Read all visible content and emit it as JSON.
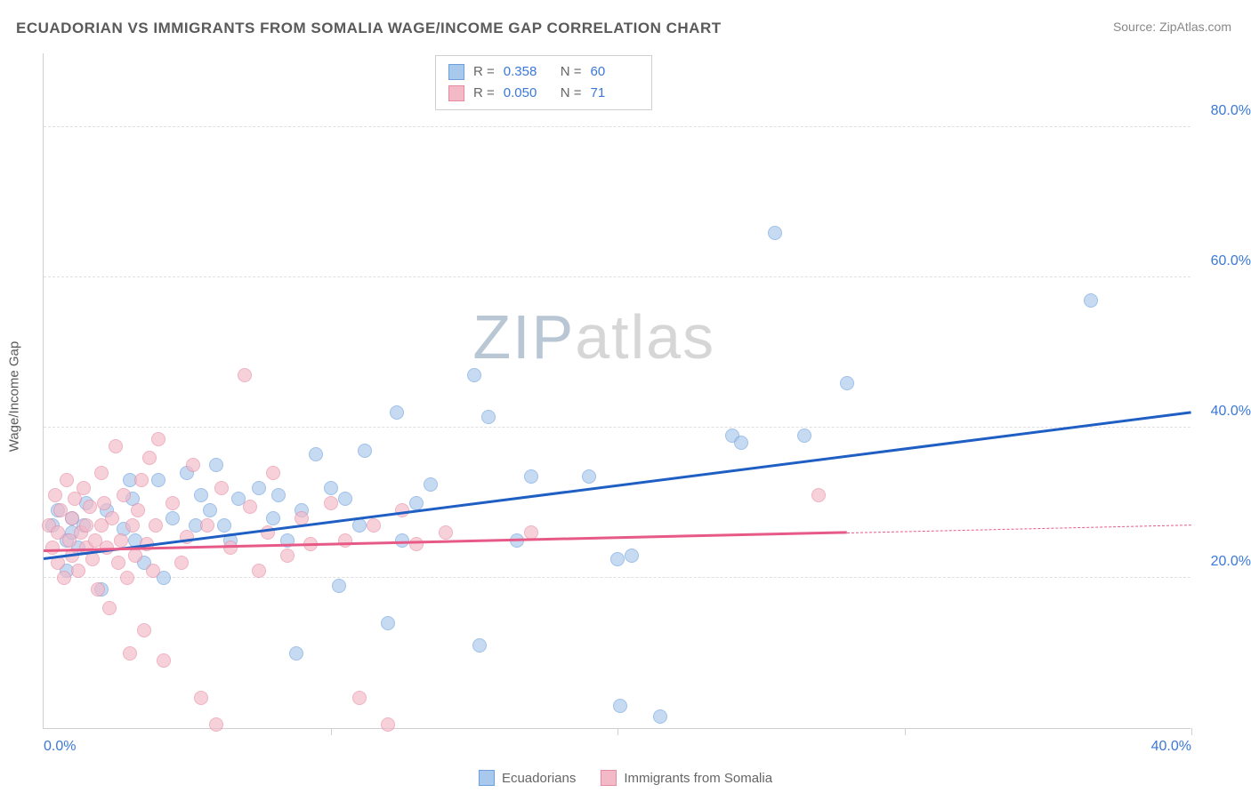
{
  "title": "ECUADORIAN VS IMMIGRANTS FROM SOMALIA WAGE/INCOME GAP CORRELATION CHART",
  "source": "Source: ZipAtlas.com",
  "y_axis_label": "Wage/Income Gap",
  "watermark": {
    "zip": "ZIP",
    "atlas": "atlas",
    "zip_color": "#b9c6d4",
    "atlas_color": "#d6d6d6"
  },
  "chart": {
    "type": "scatter",
    "background_color": "#ffffff",
    "grid_color": "#e0e0e0",
    "axis_color": "#cfcfcf",
    "tick_label_color": "#3b78d8",
    "xlim": [
      0,
      40
    ],
    "ylim": [
      0,
      90
    ],
    "x_ticks": [
      0,
      10,
      20,
      30,
      40
    ],
    "x_tick_labels": [
      "0.0%",
      "",
      "",
      "",
      "40.0%"
    ],
    "y_ticks": [
      20,
      40,
      60,
      80
    ],
    "y_tick_labels": [
      "20.0%",
      "40.0%",
      "60.0%",
      "80.0%"
    ],
    "marker_radius": 8,
    "marker_opacity": 0.65,
    "series": [
      {
        "key": "ecuadorians",
        "label": "Ecuadorians",
        "fill": "#a8c8ec",
        "stroke": "#6d9fde",
        "trend_color": "#1f5fc4",
        "R": "0.358",
        "N": "60",
        "trend": {
          "x1": 0,
          "y1": 22.5,
          "x2": 40,
          "y2": 42,
          "dash_from_x": null
        },
        "points": [
          [
            0.3,
            27
          ],
          [
            0.5,
            29
          ],
          [
            0.8,
            25
          ],
          [
            0.8,
            21
          ],
          [
            1.0,
            28
          ],
          [
            1.0,
            26
          ],
          [
            1.2,
            24
          ],
          [
            1.4,
            27
          ],
          [
            1.5,
            30
          ],
          [
            2.0,
            18.5
          ],
          [
            2.2,
            29
          ],
          [
            2.8,
            26.5
          ],
          [
            3.0,
            33
          ],
          [
            3.1,
            30.5
          ],
          [
            3.2,
            25
          ],
          [
            3.5,
            22
          ],
          [
            4.0,
            33
          ],
          [
            4.2,
            20
          ],
          [
            4.5,
            28
          ],
          [
            5.0,
            34
          ],
          [
            5.3,
            27
          ],
          [
            5.5,
            31
          ],
          [
            5.8,
            29
          ],
          [
            6.0,
            35
          ],
          [
            6.3,
            27
          ],
          [
            6.5,
            25
          ],
          [
            6.8,
            30.5
          ],
          [
            7.5,
            32
          ],
          [
            8.0,
            28
          ],
          [
            8.2,
            31
          ],
          [
            8.5,
            25
          ],
          [
            8.8,
            10
          ],
          [
            9.0,
            29
          ],
          [
            9.5,
            36.5
          ],
          [
            10.0,
            32
          ],
          [
            10.3,
            19
          ],
          [
            10.5,
            30.5
          ],
          [
            11.0,
            27
          ],
          [
            11.2,
            37
          ],
          [
            12.0,
            14
          ],
          [
            12.3,
            42
          ],
          [
            12.5,
            25
          ],
          [
            13.0,
            30
          ],
          [
            13.5,
            32.5
          ],
          [
            15.0,
            47
          ],
          [
            15.2,
            11
          ],
          [
            15.5,
            41.5
          ],
          [
            16.5,
            25
          ],
          [
            17.0,
            33.5
          ],
          [
            19.0,
            33.5
          ],
          [
            20.0,
            22.5
          ],
          [
            20.1,
            3
          ],
          [
            20.5,
            23
          ],
          [
            21.5,
            1.5
          ],
          [
            24.0,
            39
          ],
          [
            24.3,
            38
          ],
          [
            25.5,
            66
          ],
          [
            26.5,
            39
          ],
          [
            28.0,
            46
          ],
          [
            36.5,
            57
          ]
        ]
      },
      {
        "key": "somalia",
        "label": "Immigrants from Somalia",
        "fill": "#f4b9c7",
        "stroke": "#e68aa3",
        "trend_color": "#e75a87",
        "R": "0.050",
        "N": "71",
        "trend": {
          "x1": 0,
          "y1": 23.5,
          "x2": 40,
          "y2": 27,
          "dash_from_x": 28
        },
        "points": [
          [
            0.2,
            27
          ],
          [
            0.3,
            24
          ],
          [
            0.4,
            31
          ],
          [
            0.5,
            22
          ],
          [
            0.5,
            26
          ],
          [
            0.6,
            29
          ],
          [
            0.7,
            20
          ],
          [
            0.8,
            33
          ],
          [
            0.9,
            25
          ],
          [
            1.0,
            28
          ],
          [
            1.0,
            23
          ],
          [
            1.1,
            30.5
          ],
          [
            1.2,
            21
          ],
          [
            1.3,
            26
          ],
          [
            1.4,
            32
          ],
          [
            1.5,
            24
          ],
          [
            1.5,
            27
          ],
          [
            1.6,
            29.5
          ],
          [
            1.7,
            22.5
          ],
          [
            1.8,
            25
          ],
          [
            1.9,
            18.5
          ],
          [
            2.0,
            34
          ],
          [
            2.0,
            27
          ],
          [
            2.1,
            30
          ],
          [
            2.2,
            24
          ],
          [
            2.3,
            16
          ],
          [
            2.4,
            28
          ],
          [
            2.5,
            37.5
          ],
          [
            2.6,
            22
          ],
          [
            2.7,
            25
          ],
          [
            2.8,
            31
          ],
          [
            2.9,
            20
          ],
          [
            3.0,
            10
          ],
          [
            3.1,
            27
          ],
          [
            3.2,
            23
          ],
          [
            3.3,
            29
          ],
          [
            3.4,
            33
          ],
          [
            3.5,
            13
          ],
          [
            3.6,
            24.5
          ],
          [
            3.7,
            36
          ],
          [
            3.8,
            21
          ],
          [
            3.9,
            27
          ],
          [
            4.0,
            38.5
          ],
          [
            4.2,
            9
          ],
          [
            4.5,
            30
          ],
          [
            4.8,
            22
          ],
          [
            5.0,
            25.5
          ],
          [
            5.2,
            35
          ],
          [
            5.5,
            4
          ],
          [
            5.7,
            27
          ],
          [
            6.0,
            0.5
          ],
          [
            6.2,
            32
          ],
          [
            6.5,
            24
          ],
          [
            7.0,
            47
          ],
          [
            7.2,
            29.5
          ],
          [
            7.5,
            21
          ],
          [
            7.8,
            26
          ],
          [
            8.0,
            34
          ],
          [
            8.5,
            23
          ],
          [
            9.0,
            28
          ],
          [
            9.3,
            24.5
          ],
          [
            10.0,
            30
          ],
          [
            10.5,
            25
          ],
          [
            11.0,
            4
          ],
          [
            11.5,
            27
          ],
          [
            12.0,
            0.5
          ],
          [
            12.5,
            29
          ],
          [
            13.0,
            24.5
          ],
          [
            14.0,
            26
          ],
          [
            17.0,
            26
          ],
          [
            27.0,
            31
          ]
        ]
      }
    ]
  },
  "stats_legend_labels": {
    "R": "R =",
    "N": "N ="
  },
  "bottom_legend_order": [
    "ecuadorians",
    "somalia"
  ]
}
